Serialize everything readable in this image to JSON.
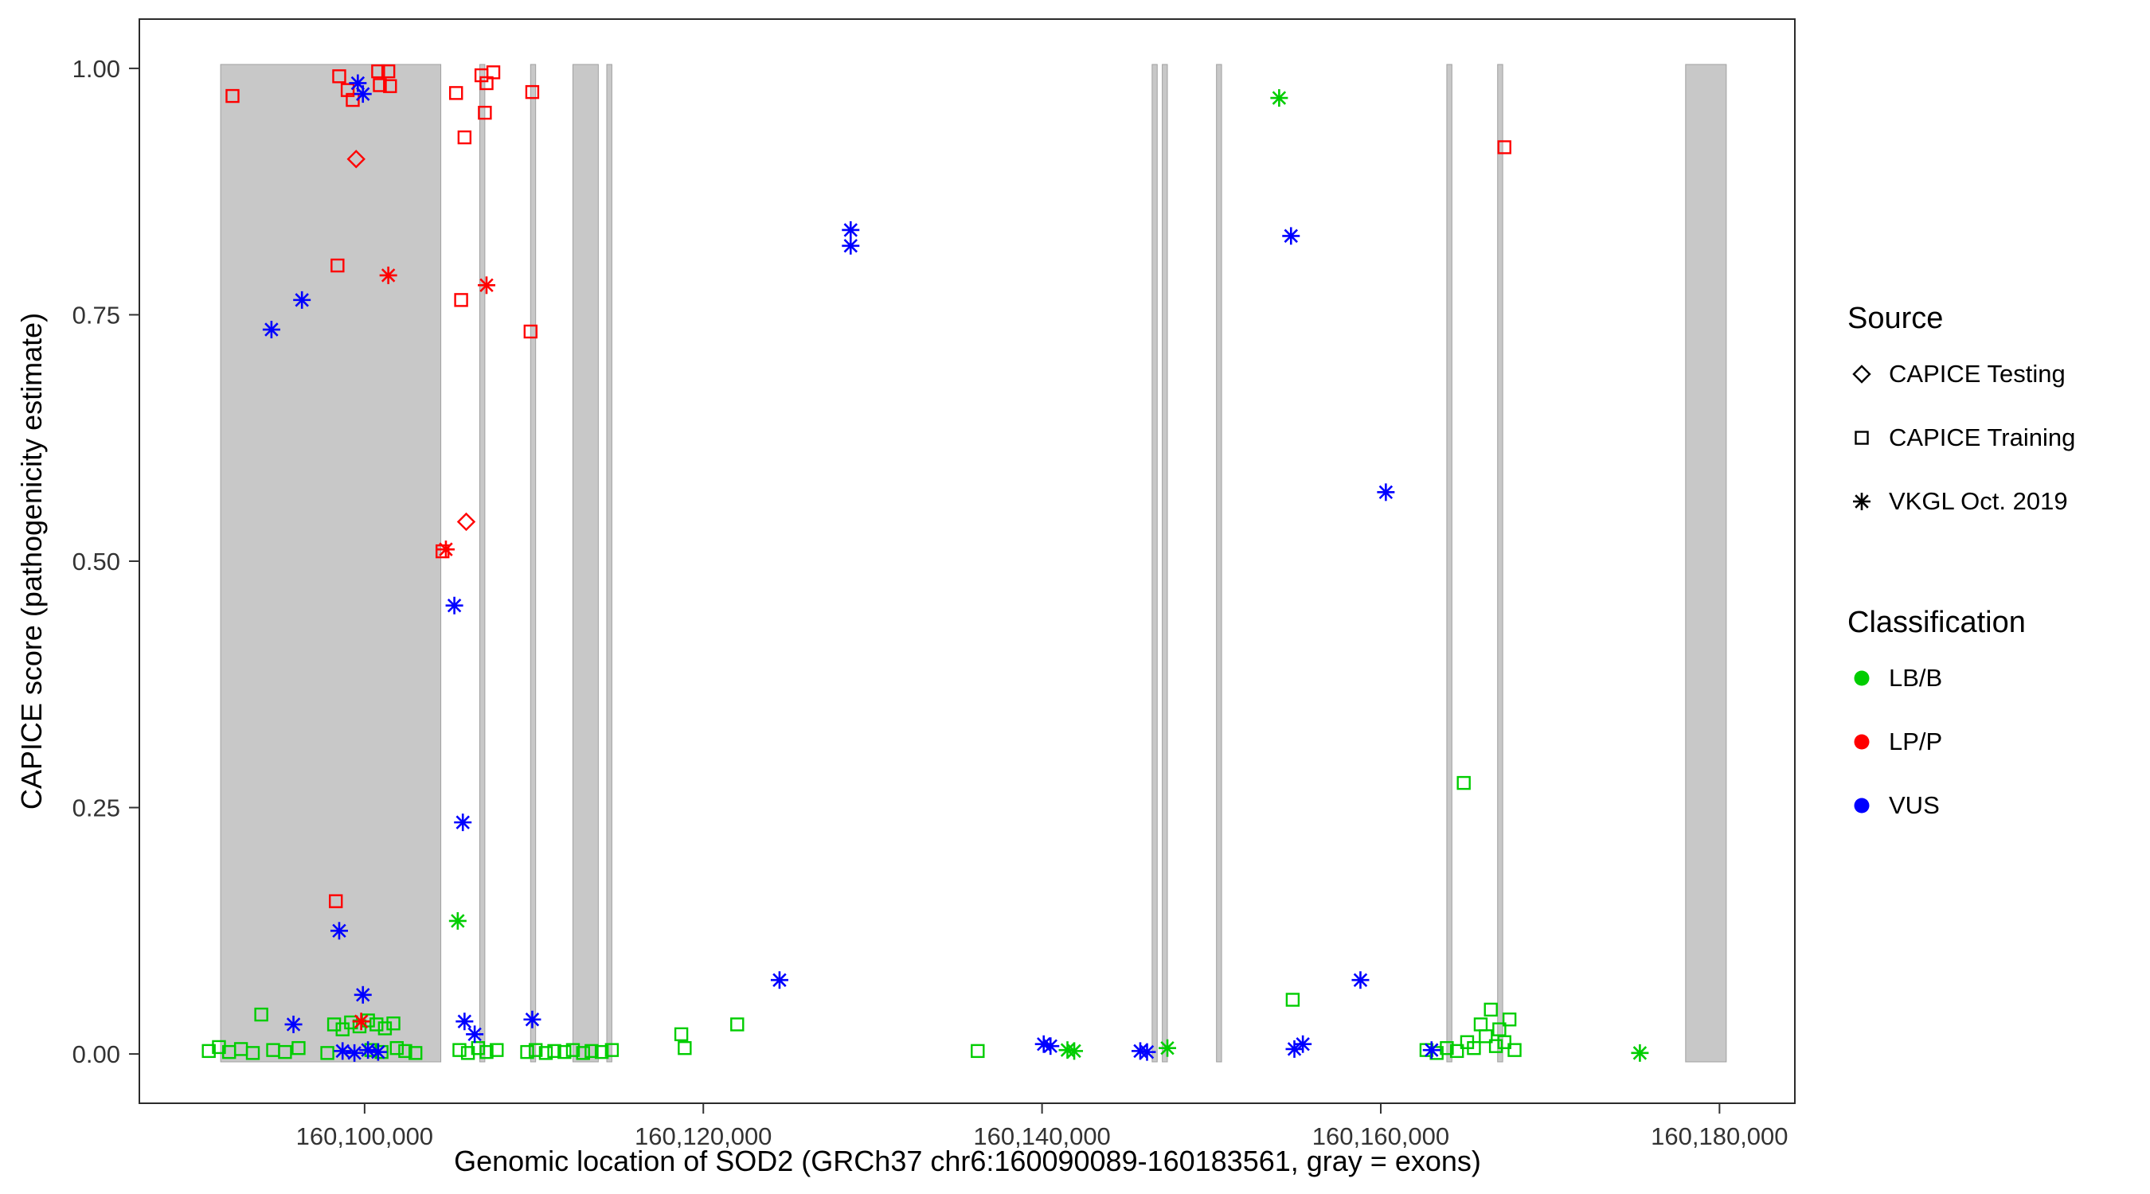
{
  "colors": {
    "lbb": "#00CD00",
    "lpp": "#FF0000",
    "vus": "#0000FF",
    "exon": "#C8C8C8",
    "exon_edge": "#A0A0A0",
    "axis": "#333333"
  },
  "legend": {
    "source": {
      "title": "Source",
      "items": [
        {
          "label": "CAPICE Testing",
          "marker": "diamond"
        },
        {
          "label": "CAPICE Training",
          "marker": "square"
        },
        {
          "label": "VKGL Oct. 2019",
          "marker": "asterisk"
        }
      ]
    },
    "classification": {
      "title": "Classification",
      "items": [
        {
          "label": "LB/B",
          "color_key": "lbb"
        },
        {
          "label": "LP/P",
          "color_key": "lpp"
        },
        {
          "label": "VUS",
          "color_key": "vus"
        }
      ]
    }
  },
  "chart_data": {
    "type": "scatter",
    "title": "",
    "xlabel": "Genomic location of SOD2 (GRCh37 chr6:160090089-160183561, gray = exons)",
    "ylabel": "CAPICE score (pathogenicity estimate)",
    "xlim": [
      160086700,
      160184450
    ],
    "ylim": [
      -0.05,
      1.05
    ],
    "x_ticks": [
      {
        "value": 160100000,
        "label": "160,100,000"
      },
      {
        "value": 160120000,
        "label": "160,120,000"
      },
      {
        "value": 160140000,
        "label": "160,140,000"
      },
      {
        "value": 160160000,
        "label": "160,160,000"
      },
      {
        "value": 160180000,
        "label": "160,180,000"
      }
    ],
    "y_ticks": [
      {
        "value": 0.0,
        "label": "0.00"
      },
      {
        "value": 0.25,
        "label": "0.25"
      },
      {
        "value": 0.5,
        "label": "0.50"
      },
      {
        "value": 0.75,
        "label": "0.75"
      },
      {
        "value": 1.0,
        "label": "1.00"
      }
    ],
    "exon_ymin": -0.008,
    "exon_ymax": 1.004,
    "exons": [
      [
        160091500,
        160104500
      ],
      [
        160106800,
        160107100
      ],
      [
        160109800,
        160110100
      ],
      [
        160112300,
        160113800
      ],
      [
        160114300,
        160114600
      ],
      [
        160146500,
        160146800
      ],
      [
        160147100,
        160147400
      ],
      [
        160150300,
        160150600
      ],
      [
        160163900,
        160164200
      ],
      [
        160166900,
        160167200
      ],
      [
        160178000,
        160180400
      ]
    ],
    "series": [
      {
        "id": "testing-lpp",
        "source": "CAPICE Testing",
        "classification": "LP/P",
        "marker": "diamond",
        "color_key": "lpp",
        "points": [
          [
            160099500,
            0.908
          ],
          [
            160106000,
            0.54
          ]
        ]
      },
      {
        "id": "training-lpp",
        "source": "CAPICE Training",
        "classification": "LP/P",
        "marker": "square",
        "color_key": "lpp",
        "points": [
          [
            160092200,
            0.972
          ],
          [
            160098500,
            0.992
          ],
          [
            160099000,
            0.978
          ],
          [
            160099300,
            0.968
          ],
          [
            160100800,
            0.997
          ],
          [
            160101400,
            0.997
          ],
          [
            160100900,
            0.983
          ],
          [
            160101500,
            0.982
          ],
          [
            160098400,
            0.8
          ],
          [
            160098300,
            0.155
          ],
          [
            160104600,
            0.51
          ],
          [
            160105400,
            0.975
          ],
          [
            160105900,
            0.93
          ],
          [
            160105700,
            0.765
          ],
          [
            160106900,
            0.993
          ],
          [
            160107200,
            0.985
          ],
          [
            160107600,
            0.996
          ],
          [
            160107100,
            0.955
          ],
          [
            160109900,
            0.976
          ],
          [
            160109800,
            0.733
          ],
          [
            160167300,
            0.92
          ]
        ]
      },
      {
        "id": "training-lbb",
        "source": "CAPICE Training",
        "classification": "LB/B",
        "marker": "square",
        "color_key": "lbb",
        "points": [
          [
            160090800,
            0.003
          ],
          [
            160091400,
            0.007
          ],
          [
            160092000,
            0.002
          ],
          [
            160092700,
            0.005
          ],
          [
            160093400,
            0.001
          ],
          [
            160093900,
            0.04
          ],
          [
            160094600,
            0.004
          ],
          [
            160095300,
            0.002
          ],
          [
            160096100,
            0.006
          ],
          [
            160097800,
            0.001
          ],
          [
            160098200,
            0.03
          ],
          [
            160098700,
            0.025
          ],
          [
            160099200,
            0.032
          ],
          [
            160099700,
            0.028
          ],
          [
            160100200,
            0.034
          ],
          [
            160100700,
            0.03
          ],
          [
            160101200,
            0.026
          ],
          [
            160101700,
            0.031
          ],
          [
            160100400,
            0.004
          ],
          [
            160101000,
            0.002
          ],
          [
            160101900,
            0.006
          ],
          [
            160102400,
            0.003
          ],
          [
            160103000,
            0.001
          ],
          [
            160105600,
            0.004
          ],
          [
            160106100,
            0.001
          ],
          [
            160106700,
            0.006
          ],
          [
            160107200,
            0.002
          ],
          [
            160107800,
            0.004
          ],
          [
            160109600,
            0.002
          ],
          [
            160110100,
            0.004
          ],
          [
            160110700,
            0.001
          ],
          [
            160111200,
            0.003
          ],
          [
            160111800,
            0.002
          ],
          [
            160112300,
            0.004
          ],
          [
            160112900,
            0.001
          ],
          [
            160113400,
            0.003
          ],
          [
            160114000,
            0.002
          ],
          [
            160114600,
            0.004
          ],
          [
            160118700,
            0.02
          ],
          [
            160118900,
            0.006
          ],
          [
            160122000,
            0.03
          ],
          [
            160136200,
            0.003
          ],
          [
            160154800,
            0.055
          ],
          [
            160162700,
            0.004
          ],
          [
            160163300,
            0.001
          ],
          [
            160163900,
            0.006
          ],
          [
            160164500,
            0.003
          ],
          [
            160164900,
            0.275
          ],
          [
            160165100,
            0.012
          ],
          [
            160165500,
            0.006
          ],
          [
            160165900,
            0.03
          ],
          [
            160166200,
            0.018
          ],
          [
            160166500,
            0.045
          ],
          [
            160166800,
            0.008
          ],
          [
            160167000,
            0.025
          ],
          [
            160167300,
            0.012
          ],
          [
            160167600,
            0.035
          ],
          [
            160167900,
            0.004
          ]
        ]
      },
      {
        "id": "vkgl-lpp",
        "source": "VKGL Oct. 2019",
        "classification": "LP/P",
        "marker": "asterisk",
        "color_key": "lpp",
        "points": [
          [
            160101400,
            0.79
          ],
          [
            160107200,
            0.78
          ],
          [
            160104800,
            0.512
          ],
          [
            160099800,
            0.033
          ]
        ]
      },
      {
        "id": "vkgl-lbb",
        "source": "VKGL Oct. 2019",
        "classification": "LB/B",
        "marker": "asterisk",
        "color_key": "lbb",
        "points": [
          [
            160154000,
            0.97
          ],
          [
            160105500,
            0.135
          ],
          [
            160141500,
            0.004
          ],
          [
            160141900,
            0.003
          ],
          [
            160147400,
            0.006
          ],
          [
            160175300,
            0.001
          ]
        ]
      },
      {
        "id": "vkgl-vus",
        "source": "VKGL Oct. 2019",
        "classification": "VUS",
        "marker": "asterisk",
        "color_key": "vus",
        "points": [
          [
            160094500,
            0.735
          ],
          [
            160096300,
            0.765
          ],
          [
            160099600,
            0.985
          ],
          [
            160099900,
            0.974
          ],
          [
            160098500,
            0.125
          ],
          [
            160099900,
            0.06
          ],
          [
            160095800,
            0.03
          ],
          [
            160098700,
            0.003
          ],
          [
            160099400,
            0.001
          ],
          [
            160100200,
            0.004
          ],
          [
            160100800,
            0.002
          ],
          [
            160105300,
            0.455
          ],
          [
            160105800,
            0.235
          ],
          [
            160105900,
            0.033
          ],
          [
            160106500,
            0.02
          ],
          [
            160109900,
            0.035
          ],
          [
            160124500,
            0.075
          ],
          [
            160128700,
            0.836
          ],
          [
            160128700,
            0.82
          ],
          [
            160140100,
            0.01
          ],
          [
            160140500,
            0.008
          ],
          [
            160145800,
            0.003
          ],
          [
            160146200,
            0.002
          ],
          [
            160154700,
            0.83
          ],
          [
            160154900,
            0.005
          ],
          [
            160155400,
            0.01
          ],
          [
            160158800,
            0.075
          ],
          [
            160160300,
            0.57
          ],
          [
            160163000,
            0.004
          ]
        ]
      }
    ]
  }
}
